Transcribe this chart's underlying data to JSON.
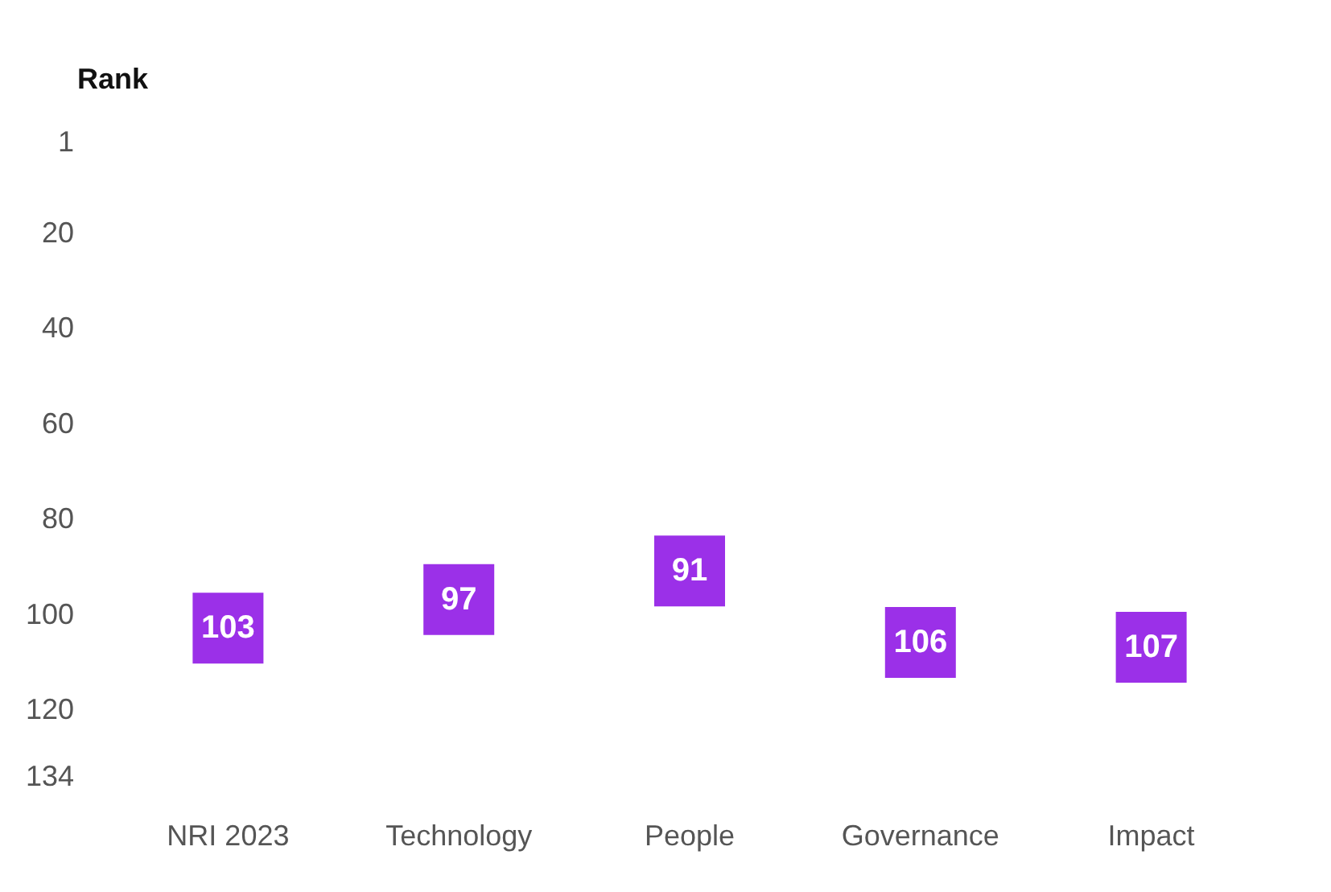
{
  "chart_data": {
    "type": "scatter",
    "ylabel": "Rank",
    "categories": [
      "NRI 2023",
      "Technology",
      "People",
      "Governance",
      "Impact"
    ],
    "series": [
      {
        "color": "#9b30e8",
        "values": [
          103,
          97,
          91,
          106,
          107
        ]
      }
    ],
    "ylim": [
      134,
      1
    ],
    "yticks": [
      1,
      20,
      40,
      60,
      80,
      100,
      120,
      134
    ],
    "grid": false,
    "marker": "square",
    "data_labels": true
  }
}
